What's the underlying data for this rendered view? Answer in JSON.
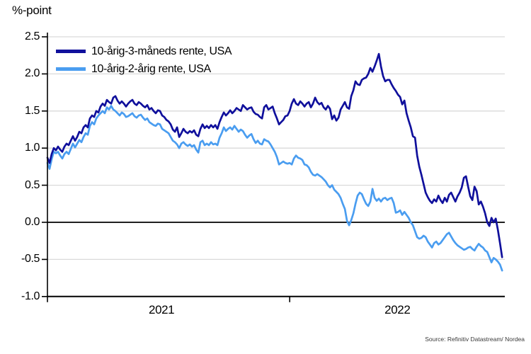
{
  "header": {
    "y_unit_label": "%-point"
  },
  "source": "Source: Refinitiv Datastream/ Nordea",
  "colors": {
    "series_dark": "#10109c",
    "series_light": "#4a9df0",
    "gridline": "#d9d9d9",
    "axis": "#000000",
    "background": "#ffffff"
  },
  "chart_data": {
    "type": "line",
    "title": "",
    "y_unit_label": "%-point",
    "xlabel": "",
    "ylabel": "",
    "ylim": [
      -1.0,
      2.5
    ],
    "grid": "horizontal-only",
    "zero_line": true,
    "legend_position": "top-left-inside",
    "y_ticks": [
      {
        "v": 2.5,
        "label": "2.5"
      },
      {
        "v": 2.0,
        "label": "2.0"
      },
      {
        "v": 1.5,
        "label": "1.5"
      },
      {
        "v": 1.0,
        "label": "1.0"
      },
      {
        "v": 0.5,
        "label": "0.5"
      },
      {
        "v": 0.0,
        "label": "0.0"
      },
      {
        "v": -0.5,
        "label": "-0.5"
      },
      {
        "v": -1.0,
        "label": "-1.0"
      }
    ],
    "x_range_years": [
      2021.055,
      2022.839
    ],
    "x_axis_boundary_ticks_years": [
      2021.055,
      2022.0
    ],
    "x_labels": [
      {
        "label": "2021",
        "center_year": 2021.5
      },
      {
        "label": "2022",
        "center_year": 2022.42
      }
    ],
    "x_start_year": 2021.055,
    "x_step_years": 0.0082873,
    "series": [
      {
        "name": "10-årig-3-måneds rente, USA",
        "color": "#10109c",
        "values": [
          0.87,
          0.8,
          0.92,
          1.0,
          0.97,
          1.02,
          0.98,
          0.95,
          1.02,
          1.06,
          1.04,
          1.1,
          1.16,
          1.1,
          1.15,
          1.22,
          1.2,
          1.28,
          1.31,
          1.28,
          1.4,
          1.44,
          1.42,
          1.5,
          1.48,
          1.56,
          1.6,
          1.57,
          1.65,
          1.62,
          1.6,
          1.68,
          1.7,
          1.64,
          1.6,
          1.63,
          1.6,
          1.56,
          1.6,
          1.63,
          1.65,
          1.6,
          1.58,
          1.62,
          1.6,
          1.57,
          1.55,
          1.58,
          1.52,
          1.54,
          1.5,
          1.47,
          1.51,
          1.5,
          1.44,
          1.42,
          1.38,
          1.36,
          1.32,
          1.25,
          1.22,
          1.28,
          1.15,
          1.2,
          1.26,
          1.22,
          1.2,
          1.23,
          1.21,
          1.24,
          1.18,
          1.16,
          1.26,
          1.32,
          1.27,
          1.3,
          1.27,
          1.31,
          1.28,
          1.31,
          1.26,
          1.35,
          1.42,
          1.48,
          1.44,
          1.47,
          1.51,
          1.47,
          1.5,
          1.54,
          1.52,
          1.5,
          1.58,
          1.55,
          1.52,
          1.54,
          1.55,
          1.49,
          1.46,
          1.45,
          1.42,
          1.4,
          1.55,
          1.58,
          1.52,
          1.54,
          1.56,
          1.47,
          1.4,
          1.32,
          1.35,
          1.38,
          1.43,
          1.44,
          1.5,
          1.6,
          1.66,
          1.6,
          1.58,
          1.63,
          1.6,
          1.56,
          1.6,
          1.62,
          1.55,
          1.6,
          1.68,
          1.62,
          1.59,
          1.61,
          1.55,
          1.52,
          1.57,
          1.53,
          1.39,
          1.44,
          1.37,
          1.41,
          1.52,
          1.57,
          1.62,
          1.55,
          1.53,
          1.7,
          1.78,
          1.9,
          1.86,
          1.85,
          1.92,
          1.94,
          1.95,
          2.0,
          2.08,
          2.03,
          2.1,
          2.18,
          2.27,
          2.1,
          1.97,
          1.9,
          1.92,
          1.92,
          1.86,
          1.81,
          1.77,
          1.72,
          1.69,
          1.59,
          1.64,
          1.47,
          1.37,
          1.28,
          1.16,
          1.14,
          0.9,
          0.75,
          0.64,
          0.52,
          0.4,
          0.34,
          0.29,
          0.26,
          0.31,
          0.28,
          0.36,
          0.3,
          0.26,
          0.33,
          0.28,
          0.37,
          0.4,
          0.34,
          0.28,
          0.35,
          0.4,
          0.47,
          0.6,
          0.62,
          0.48,
          0.35,
          0.3,
          0.48,
          0.42,
          0.24,
          0.28,
          0.21,
          0.12,
          0.0,
          -0.05,
          0.06,
          0.0,
          0.05,
          -0.1,
          -0.28,
          -0.47
        ]
      },
      {
        "name": "10-årig-2-årig rente, USA",
        "color": "#4a9df0",
        "values": [
          0.8,
          0.72,
          0.85,
          0.95,
          0.93,
          0.95,
          0.9,
          0.86,
          0.92,
          0.95,
          0.92,
          0.99,
          1.06,
          1.01,
          1.06,
          1.11,
          1.08,
          1.15,
          1.2,
          1.18,
          1.3,
          1.35,
          1.32,
          1.4,
          1.44,
          1.47,
          1.5,
          1.47,
          1.55,
          1.52,
          1.57,
          1.52,
          1.5,
          1.47,
          1.44,
          1.48,
          1.46,
          1.42,
          1.43,
          1.45,
          1.47,
          1.43,
          1.41,
          1.44,
          1.45,
          1.41,
          1.38,
          1.4,
          1.35,
          1.33,
          1.31,
          1.3,
          1.33,
          1.32,
          1.26,
          1.24,
          1.22,
          1.2,
          1.15,
          1.1,
          1.08,
          1.05,
          1.0,
          1.06,
          1.08,
          1.05,
          1.03,
          1.05,
          1.02,
          1.04,
          0.98,
          0.94,
          1.08,
          1.1,
          1.04,
          1.06,
          1.04,
          1.08,
          1.05,
          1.06,
          1.04,
          1.14,
          1.2,
          1.28,
          1.23,
          1.26,
          1.28,
          1.25,
          1.3,
          1.26,
          1.22,
          1.25,
          1.23,
          1.18,
          1.14,
          1.17,
          1.19,
          1.12,
          1.07,
          1.1,
          1.06,
          1.05,
          1.12,
          1.1,
          1.09,
          1.05,
          1.0,
          0.95,
          0.88,
          0.78,
          0.8,
          0.82,
          0.8,
          0.79,
          0.8,
          0.78,
          0.86,
          0.9,
          0.87,
          0.86,
          0.84,
          0.78,
          0.77,
          0.74,
          0.68,
          0.64,
          0.63,
          0.65,
          0.63,
          0.61,
          0.58,
          0.55,
          0.5,
          0.47,
          0.5,
          0.44,
          0.41,
          0.38,
          0.33,
          0.25,
          0.18,
          0.02,
          -0.04,
          0.03,
          0.12,
          0.25,
          0.36,
          0.4,
          0.38,
          0.31,
          0.25,
          0.22,
          0.28,
          0.45,
          0.33,
          0.29,
          0.32,
          0.28,
          0.32,
          0.33,
          0.3,
          0.32,
          0.33,
          0.26,
          0.13,
          0.14,
          0.16,
          0.1,
          0.14,
          0.1,
          0.06,
          0.0,
          -0.04,
          -0.12,
          -0.2,
          -0.22,
          -0.21,
          -0.18,
          -0.2,
          -0.26,
          -0.3,
          -0.34,
          -0.28,
          -0.26,
          -0.3,
          -0.28,
          -0.24,
          -0.2,
          -0.16,
          -0.14,
          -0.19,
          -0.24,
          -0.28,
          -0.31,
          -0.33,
          -0.35,
          -0.37,
          -0.36,
          -0.34,
          -0.33,
          -0.36,
          -0.38,
          -0.33,
          -0.29,
          -0.32,
          -0.34,
          -0.38,
          -0.4,
          -0.47,
          -0.54,
          -0.48,
          -0.5,
          -0.53,
          -0.57,
          -0.65
        ]
      }
    ]
  }
}
